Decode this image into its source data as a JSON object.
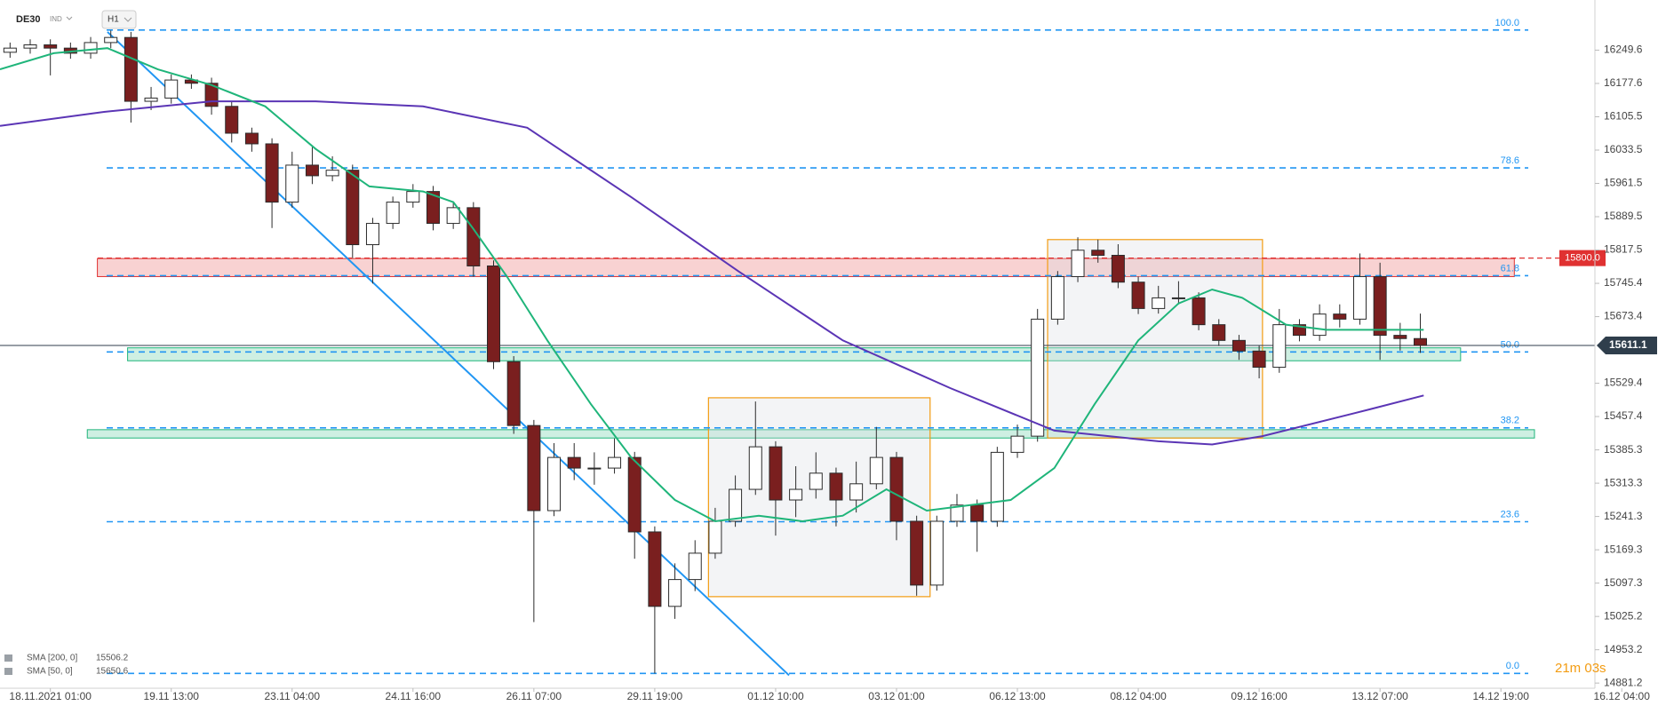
{
  "chart_data": {
    "type": "candlestick",
    "symbol": "DE30",
    "instrument_type": "IND",
    "timeframe": "H1",
    "x": [
      -12,
      -6,
      0,
      6,
      12,
      18,
      24,
      30,
      36,
      42,
      48,
      54,
      60,
      66,
      72,
      78,
      84,
      90,
      96,
      102,
      108,
      114,
      120,
      126,
      132,
      138,
      144,
      150,
      156,
      162,
      168,
      174,
      180,
      186,
      192,
      198,
      204,
      210,
      216,
      222,
      228,
      234,
      240,
      246,
      252,
      258,
      264,
      270,
      276,
      282,
      288,
      294,
      300,
      306,
      312,
      318,
      324,
      330,
      336,
      342,
      348,
      354,
      360,
      366,
      372,
      378,
      384,
      390,
      396,
      402,
      408
    ],
    "open": [
      16245,
      16254,
      16261,
      16254,
      16243,
      16266,
      16277,
      16139,
      16146,
      16185,
      16178,
      16128,
      16070,
      16047,
      15921,
      16001,
      15978,
      15990,
      15829,
      15875,
      15921,
      15944,
      15875,
      15909,
      15783,
      15576,
      15438,
      15254,
      15369,
      15346,
      15346,
      15369,
      15208,
      15047,
      15105,
      15162,
      15231,
      15300,
      15392,
      15277,
      15300,
      15335,
      15277,
      15312,
      15369,
      15231,
      15093,
      15231,
      15266,
      15231,
      15380,
      15415,
      15668,
      15760,
      15817,
      15806,
      15748,
      15691,
      15714,
      15714,
      15656,
      15622,
      15599,
      15564,
      15656,
      15633,
      15679,
      15668,
      15760,
      15633,
      15626
    ],
    "high": [
      16266,
      16273,
      16273,
      16266,
      16278,
      16292,
      16289,
      16170,
      16197,
      16197,
      16190,
      16140,
      16082,
      16059,
      16030,
      16040,
      16020,
      16002,
      15887,
      15933,
      15960,
      15956,
      15921,
      15921,
      15795,
      15588,
      15450,
      15400,
      15400,
      15380,
      15410,
      15381,
      15220,
      15140,
      15190,
      15260,
      15330,
      15490,
      15404,
      15350,
      15380,
      15347,
      15360,
      15435,
      15381,
      15243,
      15243,
      15290,
      15278,
      15392,
      15440,
      15690,
      15772,
      15845,
      15840,
      15830,
      15760,
      15740,
      15750,
      15726,
      15668,
      15634,
      15611,
      15690,
      15668,
      15700,
      15700,
      15810,
      15790,
      15660,
      15680
    ],
    "low": [
      16233,
      16242,
      16195,
      16231,
      16231,
      16254,
      16093,
      16120,
      16134,
      16166,
      16110,
      16050,
      16030,
      15865,
      15909,
      15960,
      15966,
      15800,
      15745,
      15863,
      15909,
      15860,
      15863,
      15760,
      15560,
      15420,
      15013,
      15242,
      15320,
      15310,
      15334,
      15150,
      14902,
      15020,
      15080,
      15150,
      15219,
      15288,
      15200,
      15240,
      15280,
      15220,
      15250,
      15300,
      15190,
      15070,
      15081,
      15219,
      15165,
      15219,
      15368,
      15403,
      15656,
      15748,
      15790,
      15735,
      15679,
      15680,
      15700,
      15644,
      15610,
      15580,
      15540,
      15552,
      15620,
      15621,
      15650,
      15656,
      15580,
      15600,
      15595
    ],
    "close": [
      16254,
      16261,
      16254,
      16243,
      16266,
      16277,
      16139,
      16146,
      16185,
      16178,
      16128,
      16070,
      16047,
      15921,
      16001,
      15978,
      15990,
      15829,
      15875,
      15921,
      15944,
      15875,
      15909,
      15783,
      15576,
      15438,
      15254,
      15369,
      15346,
      15346,
      15369,
      15208,
      15047,
      15105,
      15162,
      15231,
      15300,
      15392,
      15277,
      15300,
      15335,
      15277,
      15312,
      15369,
      15231,
      15093,
      15231,
      15266,
      15231,
      15380,
      15415,
      15668,
      15760,
      15817,
      15806,
      15748,
      15691,
      15714,
      15714,
      15656,
      15622,
      15599,
      15564,
      15656,
      15633,
      15679,
      15668,
      15760,
      15633,
      15626,
      15611.1
    ],
    "up_color": "#ffffff",
    "down_color": "#7a1f1f",
    "xlim": [
      -15,
      460
    ],
    "ylim": [
      14870,
      16358
    ],
    "xticks": [
      {
        "value": 0,
        "label": "18.11.2021 01:00"
      },
      {
        "value": 36,
        "label": "19.11 13:00"
      },
      {
        "value": 72,
        "label": "23.11 04:00"
      },
      {
        "value": 108,
        "label": "24.11 16:00"
      },
      {
        "value": 144,
        "label": "26.11 07:00"
      },
      {
        "value": 180,
        "label": "29.11 19:00"
      },
      {
        "value": 216,
        "label": "01.12 10:00"
      },
      {
        "value": 252,
        "label": "03.12 01:00"
      },
      {
        "value": 288,
        "label": "06.12 13:00"
      },
      {
        "value": 324,
        "label": "08.12 04:00"
      },
      {
        "value": 360,
        "label": "09.12 16:00"
      },
      {
        "value": 396,
        "label": "13.12 07:00"
      },
      {
        "value": 432,
        "label": "14.12 19:00"
      },
      {
        "value": 468,
        "label": "16.12 04:00"
      }
    ],
    "yticks": [
      16249.6,
      16177.6,
      16105.5,
      16033.5,
      15961.5,
      15889.5,
      15817.5,
      15745.4,
      15673.4,
      15529.4,
      15457.4,
      15385.3,
      15313.3,
      15241.3,
      15169.3,
      15097.3,
      15025.2,
      14953.2,
      14881.2
    ],
    "series": [
      {
        "name": "SMA [200, 0]",
        "last_value": 15506.2,
        "color": "#5b35b5",
        "x": [
          -15,
          16,
          48,
          79,
          111,
          142,
          173,
          205,
          236,
          268,
          299,
          330,
          346,
          361,
          393,
          409
        ],
        "values": [
          16086,
          16116,
          16139,
          16139,
          16128,
          16082,
          15932,
          15771,
          15622,
          15519,
          15427,
          15404,
          15397,
          15415,
          15473,
          15503
        ]
      },
      {
        "name": "SMA [50, 0]",
        "last_value": 15650.6,
        "color": "#1fb57a",
        "x": [
          -15,
          1,
          17,
          32,
          48,
          64,
          79,
          95,
          111,
          120,
          126,
          136,
          148,
          161,
          173,
          186,
          198,
          211,
          224,
          236,
          249,
          261,
          274,
          286,
          299,
          311,
          324,
          336,
          346,
          355,
          368,
          380,
          393,
          409
        ],
        "values": [
          16208,
          16243,
          16254,
          16208,
          16174,
          16128,
          16036,
          15955,
          15944,
          15921,
          15863,
          15760,
          15622,
          15484,
          15369,
          15277,
          15231,
          15243,
          15231,
          15243,
          15300,
          15254,
          15266,
          15277,
          15346,
          15484,
          15622,
          15702,
          15732,
          15714,
          15656,
          15645,
          15645,
          15645
        ]
      }
    ],
    "fib_levels": [
      {
        "label": "100.0",
        "price": 16293
      },
      {
        "label": "78.6",
        "price": 15995
      },
      {
        "label": "61.8",
        "price": 15762
      },
      {
        "label": "50.0",
        "price": 15597
      },
      {
        "label": "38.2",
        "price": 15433
      },
      {
        "label": "23.6",
        "price": 15230
      },
      {
        "label": "0.0",
        "price": 14902
      }
    ],
    "alert_line": {
      "value": 15800,
      "label": "15800.0",
      "color": "#e03131"
    },
    "current_price": 15611.1,
    "zones": [
      {
        "x": [
          14,
          436
        ],
        "y": [
          15760,
          15799
        ],
        "color": "#e03131"
      },
      {
        "x": [
          23,
          420
        ],
        "y": [
          15578,
          15606
        ],
        "color": "#1fb57a"
      },
      {
        "x": [
          11,
          442
        ],
        "y": [
          15411,
          15429
        ],
        "color": "#1fb57a"
      }
    ],
    "boxes": [
      {
        "x": [
          196,
          262
        ],
        "y": [
          15068,
          15498
        ]
      },
      {
        "x": [
          297,
          361
        ],
        "y": [
          15411,
          15840
        ]
      }
    ],
    "trendline": {
      "x": [
        17,
        220
      ],
      "y": [
        16289,
        14898
      ]
    },
    "timer": "21m 03s"
  }
}
